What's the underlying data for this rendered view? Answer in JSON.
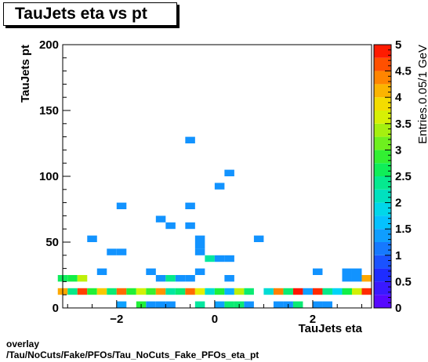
{
  "chart_data": {
    "type": "heatmap",
    "title": "TauJets eta vs pt",
    "xlabel": "TauJets eta",
    "ylabel": "TauJets pt",
    "zlabel": "Entries.0.05/1 GeV",
    "xlim": [
      -3.1,
      3.2
    ],
    "ylim": [
      0,
      200
    ],
    "zlim": [
      0,
      5
    ],
    "x_ticks": [
      -2,
      0,
      2
    ],
    "y_ticks": [
      0,
      50,
      100,
      150,
      200
    ],
    "z_ticks": [
      "0",
      "0.5",
      "1",
      "1.5",
      "2",
      "2.5",
      "3",
      "3.5",
      "4",
      "4.5",
      "5"
    ],
    "bin_width_x": 0.2,
    "bin_width_y": 5,
    "cells": [
      {
        "x": -1.9,
        "y": 2.5,
        "z": 1.4
      },
      {
        "x": -1.5,
        "y": 2.5,
        "z": 2.8
      },
      {
        "x": -1.3,
        "y": 2.5,
        "z": 1.3
      },
      {
        "x": -1.1,
        "y": 2.5,
        "z": 1.3
      },
      {
        "x": -0.9,
        "y": 2.5,
        "z": 1.3
      },
      {
        "x": -0.3,
        "y": 2.5,
        "z": 2.3
      },
      {
        "x": 0.1,
        "y": 2.5,
        "z": 1.4
      },
      {
        "x": 0.3,
        "y": 2.5,
        "z": 2.5
      },
      {
        "x": 0.5,
        "y": 2.5,
        "z": 2.5
      },
      {
        "x": 0.7,
        "y": 2.5,
        "z": 1.3
      },
      {
        "x": 1.3,
        "y": 2.5,
        "z": 1.3
      },
      {
        "x": 1.5,
        "y": 2.5,
        "z": 1.3
      },
      {
        "x": 1.7,
        "y": 2.5,
        "z": 2.5
      },
      {
        "x": 2.1,
        "y": 2.5,
        "z": 1.3
      },
      {
        "x": 2.3,
        "y": 2.5,
        "z": 1.3
      },
      {
        "x": -3.1,
        "y": 12.5,
        "z": 4.2
      },
      {
        "x": -2.9,
        "y": 12.5,
        "z": 2.4
      },
      {
        "x": -2.7,
        "y": 12.5,
        "z": 4.7
      },
      {
        "x": -2.5,
        "y": 12.5,
        "z": 2.8
      },
      {
        "x": -2.3,
        "y": 12.5,
        "z": 4.0
      },
      {
        "x": -2.1,
        "y": 12.5,
        "z": 2.5
      },
      {
        "x": -1.9,
        "y": 12.5,
        "z": 4.5
      },
      {
        "x": -1.7,
        "y": 12.5,
        "z": 2.8
      },
      {
        "x": -1.5,
        "y": 12.5,
        "z": 3.6
      },
      {
        "x": -1.3,
        "y": 12.5,
        "z": 2.9
      },
      {
        "x": -1.1,
        "y": 12.5,
        "z": 4.3
      },
      {
        "x": -0.9,
        "y": 12.5,
        "z": 2.3
      },
      {
        "x": -0.7,
        "y": 12.5,
        "z": 2.5
      },
      {
        "x": -0.5,
        "y": 12.5,
        "z": 4.5
      },
      {
        "x": -0.3,
        "y": 12.5,
        "z": 3.7
      },
      {
        "x": -0.1,
        "y": 12.5,
        "z": 2.0
      },
      {
        "x": 0.1,
        "y": 12.5,
        "z": 2.8
      },
      {
        "x": 0.3,
        "y": 12.5,
        "z": 1.5
      },
      {
        "x": 0.5,
        "y": 12.5,
        "z": 3.5
      },
      {
        "x": 0.7,
        "y": 12.5,
        "z": 2.5
      },
      {
        "x": 1.1,
        "y": 12.5,
        "z": 2.0
      },
      {
        "x": 1.3,
        "y": 12.5,
        "z": 4.4
      },
      {
        "x": 1.5,
        "y": 12.5,
        "z": 2.5
      },
      {
        "x": 1.7,
        "y": 12.5,
        "z": 4.9
      },
      {
        "x": 1.9,
        "y": 12.5,
        "z": 1.4
      },
      {
        "x": 2.1,
        "y": 12.5,
        "z": 4.8
      },
      {
        "x": 2.3,
        "y": 12.5,
        "z": 2.4
      },
      {
        "x": 2.5,
        "y": 12.5,
        "z": 1.8
      },
      {
        "x": 2.7,
        "y": 12.5,
        "z": 2.7
      },
      {
        "x": 2.9,
        "y": 12.5,
        "z": 3.6
      },
      {
        "x": 3.1,
        "y": 12.5,
        "z": 4.8
      },
      {
        "x": -3.1,
        "y": 22.5,
        "z": 2.6
      },
      {
        "x": -2.9,
        "y": 22.5,
        "z": 2.7
      },
      {
        "x": -2.7,
        "y": 22.5,
        "z": 3.5
      },
      {
        "x": -1.1,
        "y": 22.5,
        "z": 1.3
      },
      {
        "x": -0.9,
        "y": 22.5,
        "z": 2.4
      },
      {
        "x": -0.7,
        "y": 22.5,
        "z": 1.3
      },
      {
        "x": -0.5,
        "y": 22.5,
        "z": 1.3
      },
      {
        "x": 0.3,
        "y": 22.5,
        "z": 1.3
      },
      {
        "x": 2.7,
        "y": 22.5,
        "z": 1.3
      },
      {
        "x": 2.9,
        "y": 22.5,
        "z": 1.3
      },
      {
        "x": 3.1,
        "y": 22.5,
        "z": 4.2
      },
      {
        "x": -2.3,
        "y": 27.5,
        "z": 1.3
      },
      {
        "x": -1.3,
        "y": 27.5,
        "z": 1.3
      },
      {
        "x": -0.3,
        "y": 27.5,
        "z": 1.3
      },
      {
        "x": 2.1,
        "y": 27.5,
        "z": 1.3
      },
      {
        "x": 2.7,
        "y": 27.5,
        "z": 1.3
      },
      {
        "x": 2.9,
        "y": 27.5,
        "z": 1.3
      },
      {
        "x": -0.1,
        "y": 37.5,
        "z": 2.3
      },
      {
        "x": 0.1,
        "y": 37.5,
        "z": 1.3
      },
      {
        "x": 0.3,
        "y": 37.5,
        "z": 1.3
      },
      {
        "x": -2.5,
        "y": 52.5,
        "z": 1.3
      },
      {
        "x": -2.1,
        "y": 42.5,
        "z": 1.3
      },
      {
        "x": -1.9,
        "y": 42.5,
        "z": 1.3
      },
      {
        "x": -0.3,
        "y": 42.5,
        "z": 1.3
      },
      {
        "x": -0.3,
        "y": 47.5,
        "z": 1.3
      },
      {
        "x": -0.3,
        "y": 52.5,
        "z": 1.3
      },
      {
        "x": 0.9,
        "y": 52.5,
        "z": 1.3
      },
      {
        "x": -0.9,
        "y": 62.5,
        "z": 1.3
      },
      {
        "x": -0.5,
        "y": 62.5,
        "z": 1.3
      },
      {
        "x": -1.1,
        "y": 67.5,
        "z": 1.3
      },
      {
        "x": -1.9,
        "y": 77.5,
        "z": 1.3
      },
      {
        "x": -0.5,
        "y": 77.5,
        "z": 1.3
      },
      {
        "x": 0.1,
        "y": 92.5,
        "z": 1.3
      },
      {
        "x": 0.3,
        "y": 102.5,
        "z": 1.3
      },
      {
        "x": -0.5,
        "y": 127.5,
        "z": 1.3
      }
    ]
  }
}
